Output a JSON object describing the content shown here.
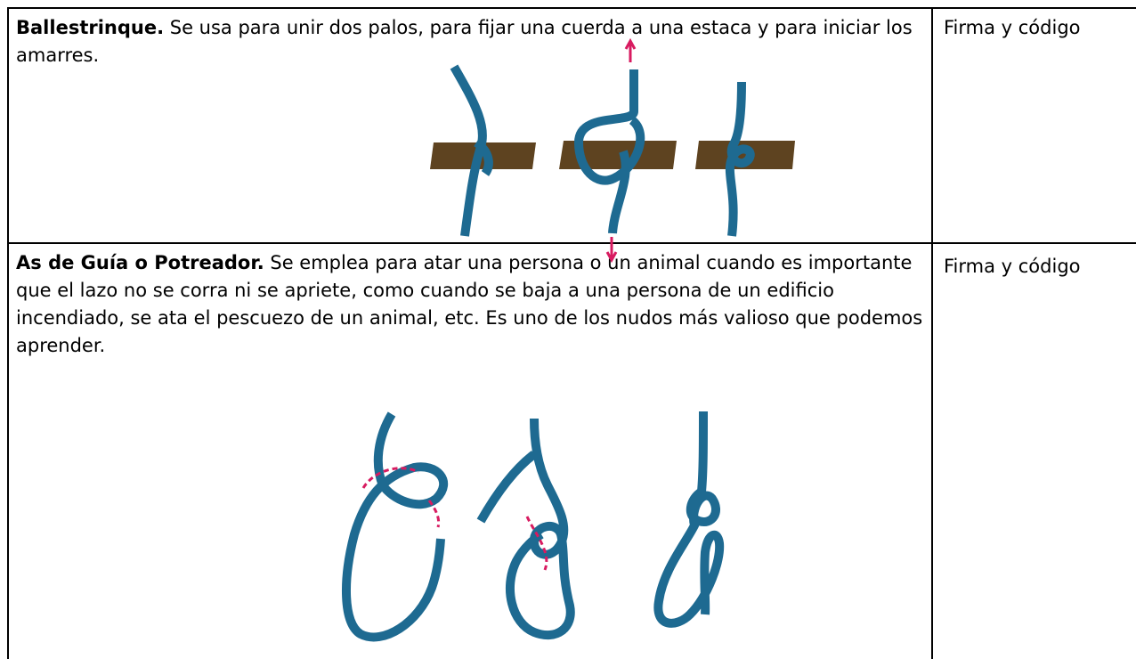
{
  "table": {
    "rows": [
      {
        "title": "Ballestrinque.",
        "text": "Se usa para unir dos palos, para fijar una cuerda a una estaca y para iniciar los amarres.",
        "signature": "Firma y código"
      },
      {
        "title": "As de Guía o Potreador.",
        "text": "Se emplea para atar una persona o un animal cuando es importante que el lazo no se corra ni se apriete, como cuando se baja a una persona de un edificio incendiado, se ata el pescuezo de un animal, etc.  Es uno de los nudos más valioso que podemos aprender.",
        "signature": "Firma y código"
      }
    ]
  }
}
